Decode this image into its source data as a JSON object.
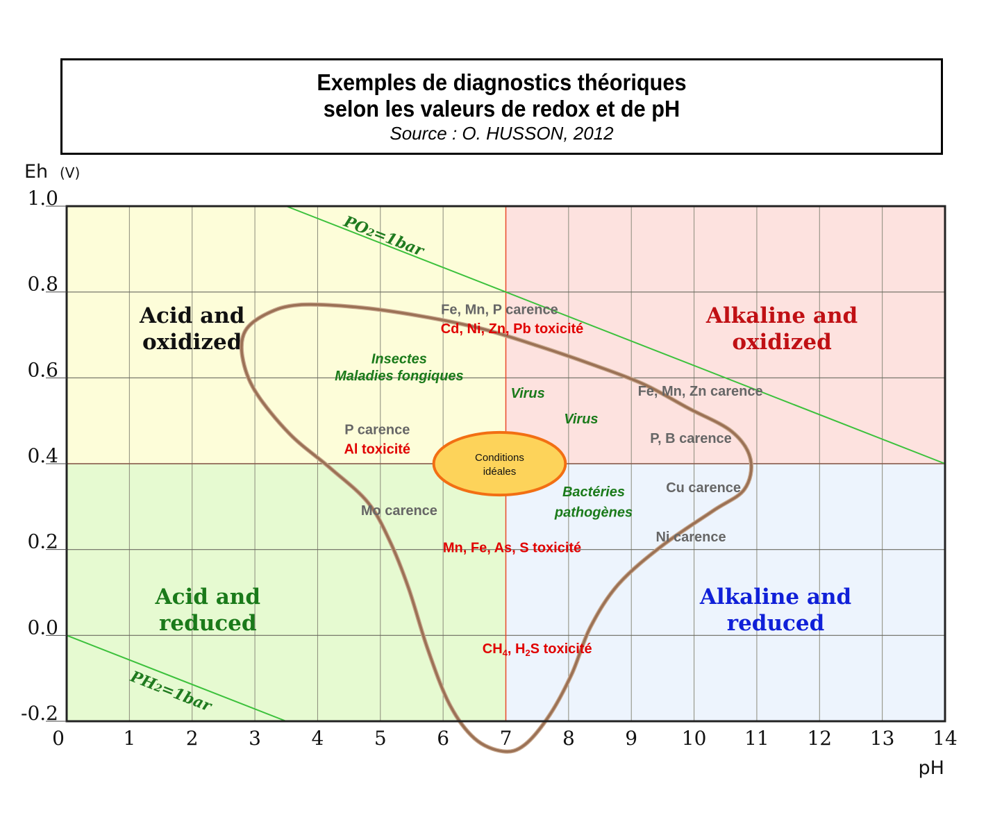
{
  "title": {
    "line1": "Exemples de diagnostics théoriques",
    "line2": "selon les valeurs de redox et de pH",
    "source": "Source : O. HUSSON, 2012"
  },
  "chart_data": {
    "type": "scatter",
    "title": "Exemples de diagnostics théoriques selon les valeurs de redox et de pH",
    "xlabel": "pH",
    "ylabel": "Eh",
    "ylabel_unit": "(V)",
    "xlim": [
      0,
      14
    ],
    "ylim": [
      -0.2,
      1.0
    ],
    "grid": true,
    "x_ticks": [
      0,
      1,
      2,
      3,
      4,
      5,
      6,
      7,
      8,
      9,
      10,
      11,
      12,
      13,
      14
    ],
    "x_tick_labels": [
      "0",
      "1",
      "2",
      "3",
      "4",
      "5",
      "6",
      "7",
      "8",
      "9",
      "10",
      "11",
      "12",
      "13",
      "14"
    ],
    "y_ticks": [
      1.0,
      0.8,
      0.6,
      0.4,
      0.2,
      0.0,
      -0.2
    ],
    "y_tick_labels": [
      "1.0",
      "0.8",
      "0.6",
      "0.4",
      "0.2",
      "0.0",
      "-0.2"
    ],
    "dividers": {
      "ph": 7,
      "eh": 0.4
    },
    "colors": {
      "acid_oxidized": "#fdfdd9",
      "alkaline_oxidized": "#fde2df",
      "acid_reduced": "#e6fad1",
      "alkaline_reduced": "#edf4fd",
      "ph_divider": "#e8472a",
      "eh_divider": "#8a5a4a",
      "limit_lines": "#3cc13c",
      "envelope": "#9b7155",
      "ideal_fill": "#fdd35a",
      "ideal_stroke": "#f26f13",
      "grey_text": "#666666",
      "red_text": "#e00000",
      "green_text": "#1a7a1a"
    },
    "regions": [
      {
        "id": "acid_oxidized",
        "label_line1": "Acid and",
        "label_line2": "oxidized",
        "color": "#111111",
        "label_ph": 2.0,
        "label_eh": 0.715
      },
      {
        "id": "alkaline_oxidized",
        "label_line1": "Alkaline and",
        "label_line2": "oxidized",
        "color": "#c01014",
        "label_ph": 11.4,
        "label_eh": 0.715
      },
      {
        "id": "acid_reduced",
        "label_line1": "Acid and",
        "label_line2": "reduced",
        "color": "#1a7a1a",
        "label_ph": 2.25,
        "label_eh": 0.06
      },
      {
        "id": "alkaline_reduced",
        "label_line1": "Alkaline and",
        "label_line2": "reduced",
        "color": "#1020d8",
        "label_ph": 11.3,
        "label_eh": 0.06
      }
    ],
    "limit_lines": [
      {
        "name": "PO2=1bar",
        "label": "PO",
        "sub": "2",
        "suffix": "=1bar",
        "x": [
          3.5,
          14
        ],
        "y": [
          1.0,
          0.4
        ],
        "label_ph": 4.4,
        "label_eh": 0.955
      },
      {
        "name": "PH2=1bar",
        "label": "PH",
        "sub": "2",
        "suffix": "=1bar",
        "x": [
          0,
          3.5
        ],
        "y": [
          0.0,
          -0.2
        ],
        "label_ph": 1.0,
        "label_eh": -0.105
      }
    ],
    "envelope": {
      "name": "diagnostic envelope",
      "x": [
        3.7,
        4.6,
        5.6,
        6.6,
        7.5,
        8.4,
        9.2,
        9.9,
        10.6,
        10.9,
        10.8,
        10.3,
        9.5,
        8.8,
        8.35,
        8.05,
        7.7,
        7.3,
        6.95,
        6.5,
        6.1,
        5.75,
        5.45,
        5.15,
        4.8,
        4.2,
        3.55,
        3.0,
        2.8,
        2.85,
        3.2,
        3.7
      ],
      "y": [
        0.77,
        0.765,
        0.745,
        0.715,
        0.675,
        0.63,
        0.585,
        0.53,
        0.475,
        0.41,
        0.34,
        0.29,
        0.21,
        0.12,
        0.02,
        -0.09,
        -0.185,
        -0.255,
        -0.27,
        -0.24,
        -0.16,
        -0.03,
        0.11,
        0.22,
        0.31,
        0.39,
        0.47,
        0.57,
        0.65,
        0.71,
        0.75,
        0.77
      ]
    },
    "ideal_conditions": {
      "label_line1": "Conditions",
      "label_line2": "idéales",
      "center_ph": 6.9,
      "center_eh": 0.4,
      "half_width_ph": 1.05,
      "half_height_eh": 0.073
    },
    "annotations": [
      {
        "text": "Fe, Mn, P carence",
        "style": "grey",
        "ph": 6.9,
        "eh": 0.76
      },
      {
        "text": "Cd, Ni, Zn, Pb toxicité",
        "style": "red",
        "ph": 7.1,
        "eh": 0.715
      },
      {
        "text": "Insectes",
        "style": "green",
        "ph": 5.3,
        "eh": 0.645
      },
      {
        "text": "Maladies fongiques",
        "style": "green",
        "ph": 5.3,
        "eh": 0.605
      },
      {
        "text": "Virus",
        "style": "green",
        "ph": 7.35,
        "eh": 0.565
      },
      {
        "text": "Fe, Mn, Zn carence",
        "style": "grey",
        "ph": 10.1,
        "eh": 0.57
      },
      {
        "text": "Virus",
        "style": "green",
        "ph": 8.2,
        "eh": 0.505
      },
      {
        "text": "P, B carence",
        "style": "grey",
        "ph": 9.95,
        "eh": 0.46
      },
      {
        "text": "P carence",
        "style": "grey",
        "ph": 4.95,
        "eh": 0.48
      },
      {
        "text": "Al toxicité",
        "style": "red",
        "ph": 4.95,
        "eh": 0.435
      },
      {
        "text": "Cu carence",
        "style": "grey",
        "ph": 10.15,
        "eh": 0.345
      },
      {
        "text": "Bactéries",
        "style": "green",
        "ph": 8.4,
        "eh": 0.335
      },
      {
        "text": "pathogènes",
        "style": "green",
        "ph": 8.4,
        "eh": 0.288
      },
      {
        "text": "Mo carence",
        "style": "grey",
        "ph": 5.3,
        "eh": 0.292
      },
      {
        "text": "Ni carence",
        "style": "grey",
        "ph": 9.95,
        "eh": 0.23
      },
      {
        "text": "Mn, Fe, As, S toxicité",
        "style": "red",
        "ph": 7.1,
        "eh": 0.205
      }
    ],
    "annotation_special": {
      "part1": "CH",
      "sub1": "4",
      "part2": ", H",
      "sub2": "2",
      "part3": "S toxicité",
      "style": "red",
      "ph": 7.5,
      "eh": -0.03
    }
  }
}
